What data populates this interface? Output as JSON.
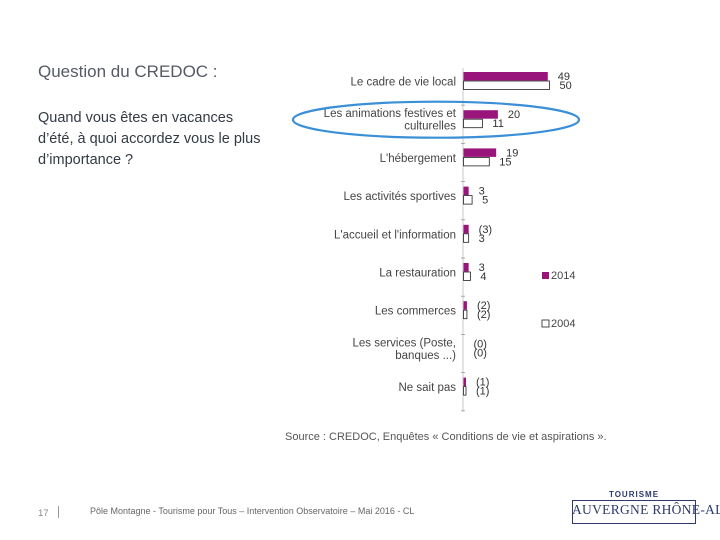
{
  "slide": {
    "title": "Question du CREDOC :",
    "question": "Quand vous êtes en vacances d’été, à quoi accordez vous le plus d’importance ?"
  },
  "chart_data": {
    "type": "bar",
    "orientation": "horizontal",
    "categories": [
      [
        "Le cadre de vie local"
      ],
      [
        "Les animations festives et",
        "culturelles"
      ],
      [
        "L'hébergement"
      ],
      [
        "Les activités sportives"
      ],
      [
        "L'accueil et l'information"
      ],
      [
        "La restauration"
      ],
      [
        "Les commerces"
      ],
      [
        "Les services (Poste,",
        "banques ...)"
      ],
      [
        "Ne sait pas"
      ]
    ],
    "series": [
      {
        "name": "2014",
        "color": "#99157c",
        "values": [
          49,
          20,
          19,
          3,
          3,
          3,
          2,
          0,
          1
        ],
        "labels": [
          "49",
          "20",
          "19",
          "3",
          "(3)",
          "3",
          "(2)",
          "(0)",
          "(1)"
        ]
      },
      {
        "name": "2004",
        "color": "#ffffff",
        "values": [
          50,
          11,
          15,
          5,
          3,
          4,
          2,
          0,
          1
        ],
        "labels": [
          "50",
          "11",
          "15",
          "5",
          "3",
          "4",
          "(2)",
          "(0)",
          "(1)"
        ]
      }
    ],
    "source": "Source : CREDOC, Enquêtes « Conditions de vie et aspirations ».",
    "legend_position": "right",
    "highlighted_category": "Les animations festives et culturelles"
  },
  "footer": {
    "page_number": "17",
    "text": "Pôle Montagne - Tourisme pour Tous – Intervention Observatoire – Mai 2016 - CL"
  },
  "logo": {
    "top_text": "TOURISME",
    "main_text": "AUVERGNE RHÔNE-ALPES"
  }
}
